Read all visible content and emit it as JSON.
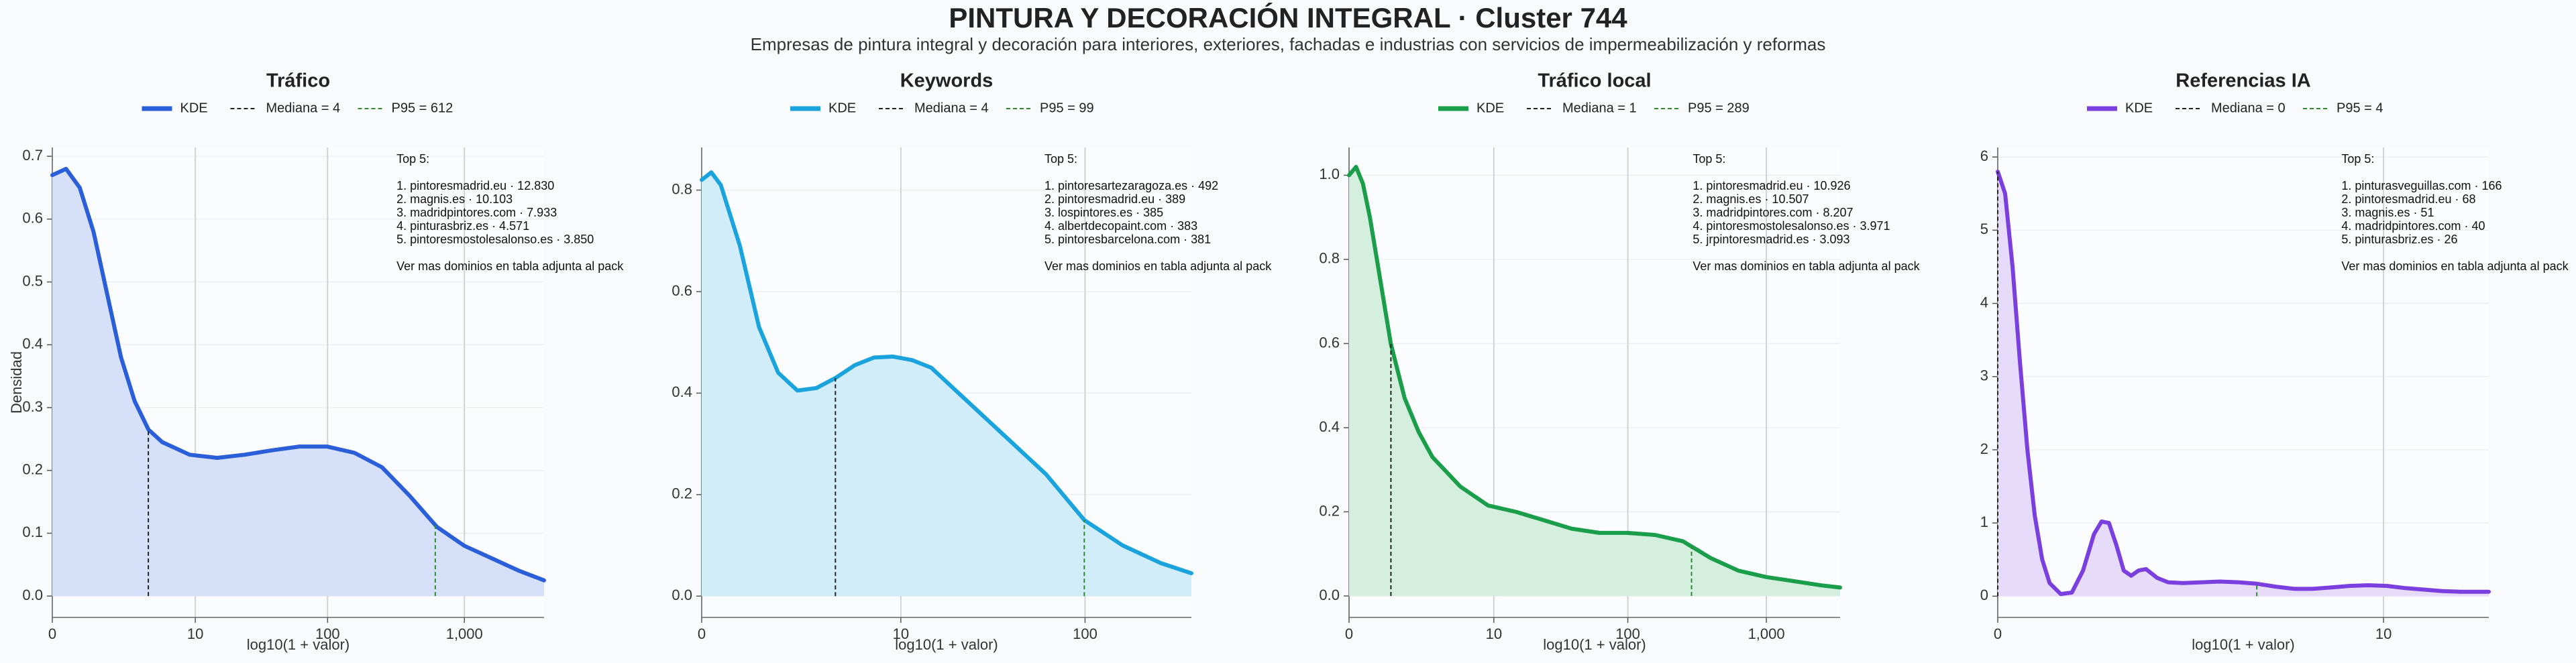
{
  "chart_data": [
    {
      "type": "line",
      "title": "Tráfico",
      "xlabel": "log10(1 + valor)",
      "ylabel": "Densidad",
      "series": [
        {
          "name": "KDE",
          "color": "#2b5fd9",
          "fill": "#d6e0f8",
          "x": [
            0,
            0.1,
            0.2,
            0.3,
            0.4,
            0.5,
            0.6,
            0.7,
            0.8,
            1.0,
            1.2,
            1.4,
            1.6,
            1.8,
            2.0,
            2.2,
            2.4,
            2.6,
            2.8,
            3.0,
            3.2,
            3.4,
            3.58
          ],
          "values": [
            0.67,
            0.68,
            0.65,
            0.58,
            0.48,
            0.38,
            0.31,
            0.265,
            0.245,
            0.225,
            0.22,
            0.225,
            0.232,
            0.238,
            0.238,
            0.228,
            0.205,
            0.16,
            0.11,
            0.08,
            0.06,
            0.04,
            0.025
          ]
        }
      ],
      "median": {
        "x": 0.699,
        "label": "Mediana = 4",
        "color": "#222222"
      },
      "p95": {
        "x": 2.788,
        "label": "P95 = 612",
        "color": "#2e8b2e"
      },
      "xlim": [
        0,
        3.58
      ],
      "xticks": [
        0,
        {
          "value": 1.041,
          "label": "10"
        },
        {
          "value": 2.004,
          "label": "100"
        },
        {
          "value": 3.0,
          "label": "1,000"
        }
      ],
      "ylim": [
        -0.034,
        0.714
      ],
      "yticks": [
        {
          "value": 0,
          "label": "0.0"
        },
        0.1,
        0.2,
        0.3,
        0.4,
        0.5,
        0.6,
        0.7
      ],
      "grid": true,
      "annotation": {
        "heading": "Top 5:",
        "items": [
          "1. pintoresmadrid.eu · 12.830",
          "2. magnis.es · 10.103",
          "3. madridpintores.com · 7.933",
          "4. pinturasbriz.es · 4.571",
          "5. pintoresmostolesalonso.es · 3.850"
        ],
        "footer": "Ver mas dominios en tabla adjunta al pack"
      }
    },
    {
      "type": "line",
      "title": "Keywords",
      "xlabel": "log10(1 + valor)",
      "series": [
        {
          "name": "KDE",
          "color": "#1ba3de",
          "fill": "#d2edfa",
          "x": [
            0,
            0.05,
            0.1,
            0.2,
            0.3,
            0.4,
            0.5,
            0.6,
            0.7,
            0.8,
            0.9,
            1.0,
            1.1,
            1.2,
            1.4,
            1.6,
            1.8,
            2.0,
            2.2,
            2.4,
            2.56
          ],
          "values": [
            0.82,
            0.835,
            0.81,
            0.69,
            0.53,
            0.44,
            0.405,
            0.41,
            0.43,
            0.455,
            0.47,
            0.472,
            0.465,
            0.45,
            0.38,
            0.31,
            0.24,
            0.15,
            0.1,
            0.065,
            0.045
          ]
        }
      ],
      "median": {
        "x": 0.699,
        "label": "Mediana = 4",
        "color": "#222222"
      },
      "p95": {
        "x": 2.0,
        "label": "P95 = 99",
        "color": "#2e8b2e"
      },
      "xlim": [
        0,
        2.56
      ],
      "xticks": [
        0,
        {
          "value": 1.041,
          "label": "10"
        },
        {
          "value": 2.004,
          "label": "100"
        }
      ],
      "ylim": [
        -0.042,
        0.884
      ],
      "yticks": [
        {
          "value": 0,
          "label": "0.0"
        },
        0.2,
        0.4,
        0.6,
        0.8
      ],
      "grid": true,
      "annotation": {
        "heading": "Top 5:",
        "items": [
          "1. pintoresartezaragoza.es · 492",
          "2. pintoresmadrid.eu · 389",
          "3. lospintores.es · 385",
          "4. albertdecopaint.com · 383",
          "5. pintoresbarcelona.com · 381"
        ],
        "footer": "Ver mas dominios en tabla adjunta al pack"
      }
    },
    {
      "type": "line",
      "title": "Tráfico local",
      "xlabel": "log10(1 + valor)",
      "series": [
        {
          "name": "KDE",
          "color": "#1a9e4a",
          "fill": "#d4efdd",
          "x": [
            0,
            0.05,
            0.1,
            0.15,
            0.2,
            0.3,
            0.4,
            0.5,
            0.6,
            0.8,
            1.0,
            1.2,
            1.4,
            1.6,
            1.8,
            2.0,
            2.2,
            2.4,
            2.6,
            2.8,
            3.0,
            3.2,
            3.4,
            3.53
          ],
          "values": [
            1.0,
            1.02,
            0.98,
            0.9,
            0.8,
            0.6,
            0.47,
            0.39,
            0.33,
            0.26,
            0.215,
            0.2,
            0.18,
            0.16,
            0.15,
            0.15,
            0.145,
            0.13,
            0.09,
            0.06,
            0.045,
            0.035,
            0.025,
            0.02
          ]
        }
      ],
      "median": {
        "x": 0.301,
        "label": "Mediana = 1",
        "color": "#222222"
      },
      "p95": {
        "x": 2.462,
        "label": "P95 = 289",
        "color": "#2e8b2e"
      },
      "xlim": [
        0,
        3.53
      ],
      "xticks": [
        0,
        {
          "value": 1.041,
          "label": "10"
        },
        {
          "value": 2.004,
          "label": "100"
        },
        {
          "value": 3.0,
          "label": "1,000"
        }
      ],
      "ylim": [
        -0.051,
        1.066
      ],
      "yticks": [
        {
          "value": 0,
          "label": "0.0"
        },
        0.2,
        0.4,
        0.6,
        0.8,
        {
          "value": 1,
          "label": "1.0"
        }
      ],
      "grid": true,
      "annotation": {
        "heading": "Top 5:",
        "items": [
          "1. pintoresmadrid.eu · 10.926",
          "2. magnis.es · 10.507",
          "3. madridpintores.com · 8.207",
          "4. pintoresmostolesalonso.es · 3.971",
          "5. jrpintoresmadrid.es · 3.093"
        ],
        "footer": "Ver mas dominios en tabla adjunta al pack"
      }
    },
    {
      "type": "line",
      "title": "Referencias IA",
      "xlabel": "log10(1 + valor)",
      "series": [
        {
          "name": "KDE",
          "color": "#7b3fe0",
          "fill": "#e7dbfa",
          "x": [
            0,
            0.02,
            0.04,
            0.06,
            0.08,
            0.1,
            0.12,
            0.14,
            0.17,
            0.2,
            0.23,
            0.26,
            0.28,
            0.3,
            0.32,
            0.34,
            0.36,
            0.38,
            0.4,
            0.43,
            0.46,
            0.5,
            0.55,
            0.6,
            0.65,
            0.7,
            0.75,
            0.8,
            0.85,
            0.9,
            0.95,
            1.0,
            1.05,
            1.1,
            1.15,
            1.2,
            1.25,
            1.325
          ],
          "values": [
            5.8,
            5.5,
            4.5,
            3.2,
            2.0,
            1.1,
            0.5,
            0.18,
            0.03,
            0.05,
            0.35,
            0.85,
            1.02,
            1.0,
            0.7,
            0.35,
            0.28,
            0.35,
            0.37,
            0.25,
            0.19,
            0.18,
            0.19,
            0.2,
            0.19,
            0.17,
            0.13,
            0.1,
            0.1,
            0.12,
            0.14,
            0.15,
            0.14,
            0.11,
            0.09,
            0.07,
            0.06,
            0.06
          ]
        }
      ],
      "median": {
        "x": 0,
        "label": "Mediana = 0",
        "color": "#222222"
      },
      "p95": {
        "x": 0.699,
        "label": "P95 = 4",
        "color": "#2e8b2e"
      },
      "xlim": [
        0,
        1.325
      ],
      "xticks": [
        0,
        {
          "value": 1.041,
          "label": "10"
        }
      ],
      "ylim": [
        -0.29,
        6.13
      ],
      "yticks": [
        0,
        1,
        2,
        3,
        4,
        5,
        6
      ],
      "grid": true,
      "annotation": {
        "heading": "Top 5:",
        "items": [
          "1. pinturasveguillas.com · 166",
          "2. pintoresmadrid.eu · 68",
          "3. magnis.es · 51",
          "4. madridpintores.com · 40",
          "5. pinturasbriz.es · 26"
        ],
        "footer": "Ver mas dominios en tabla adjunta al pack"
      }
    }
  ],
  "header": {
    "title": "PINTURA Y DECORACIÓN INTEGRAL · Cluster 744",
    "subtitle": "Empresas de pintura integral y decoración para interiores, exteriores, fachadas e industrias con servicios de impermeabilización y reformas"
  }
}
